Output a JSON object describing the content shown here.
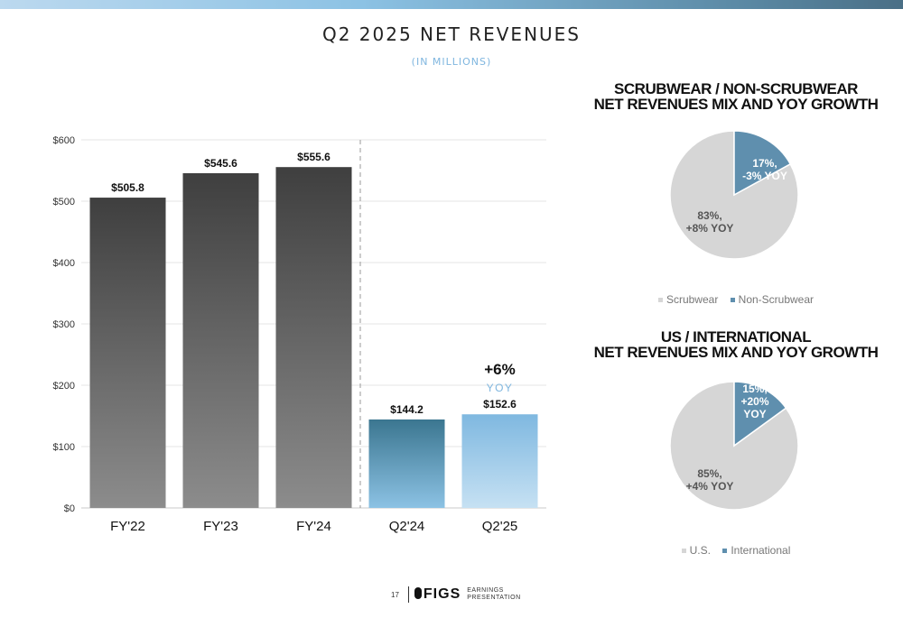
{
  "header": {
    "title": "Q2 2025 NET REVENUES",
    "subtitle": "(IN MILLIONS)"
  },
  "chart_data": [
    {
      "type": "bar",
      "categories": [
        "FY'22",
        "FY'23",
        "FY'24",
        "Q2'24",
        "Q2'25"
      ],
      "values": [
        505.8,
        545.6,
        555.6,
        144.2,
        152.6
      ],
      "data_labels": [
        "$505.8",
        "$545.6",
        "$555.6",
        "$144.2",
        "$152.6"
      ],
      "yticks": [
        "$0",
        "$100",
        "$200",
        "$300",
        "$400",
        "$500",
        "$600"
      ],
      "ylim": [
        0,
        600
      ],
      "grid": true,
      "annotation": {
        "value": "+6%",
        "label": "YOY"
      },
      "colors": {
        "annual_top": "#3f3f3f",
        "annual_bottom": "#8c8c8c",
        "q224_top": "#3b7690",
        "q224_bottom": "#8cc2e4",
        "q225_top": "#7fb8e0",
        "q225_bottom": "#c6e1f3",
        "accent": "#7fb6df"
      }
    },
    {
      "type": "pie",
      "title_line1": "SCRUBWEAR / NON-SCRUBWEAR",
      "title_line2": "NET REVENUES MIX AND YOY GROWTH",
      "slices": [
        {
          "name": "Scrubwear",
          "value": 83,
          "label_lines": [
            "83%,",
            "+8% YOY"
          ],
          "color": "#d6d6d6"
        },
        {
          "name": "Non-Scrubwear",
          "value": 17,
          "label_lines": [
            "17%,",
            "-3% YOY"
          ],
          "color": "#5f8fae"
        }
      ]
    },
    {
      "type": "pie",
      "title_line1": "US / INTERNATIONAL",
      "title_line2": "NET REVENUES MIX AND YOY GROWTH",
      "slices": [
        {
          "name": "U.S.",
          "value": 85,
          "label_lines": [
            "85%,",
            "+4% YOY"
          ],
          "color": "#d6d6d6"
        },
        {
          "name": "International",
          "value": 15,
          "label_lines": [
            "15%,",
            "+20%",
            "YOY"
          ],
          "color": "#5f8fae"
        }
      ]
    }
  ],
  "footer": {
    "page_number": "17",
    "logo": "FIGS",
    "tagline_line1": "EARNINGS",
    "tagline_line2": "PRESENTATION"
  }
}
